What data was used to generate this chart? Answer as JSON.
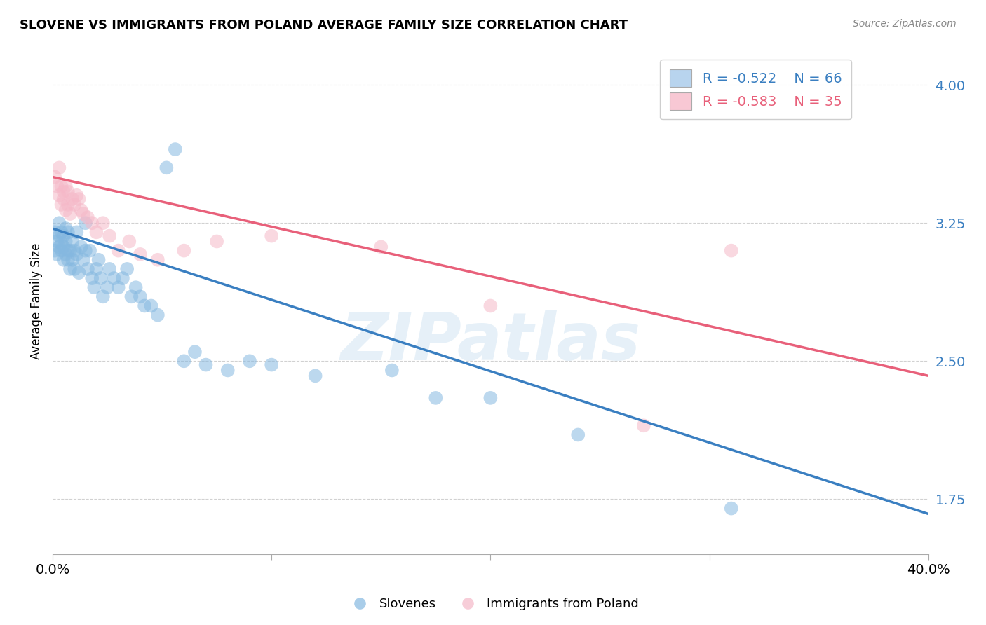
{
  "title": "SLOVENE VS IMMIGRANTS FROM POLAND AVERAGE FAMILY SIZE CORRELATION CHART",
  "source": "Source: ZipAtlas.com",
  "ylabel": "Average Family Size",
  "yticks": [
    1.75,
    2.5,
    3.25,
    4.0
  ],
  "xlim": [
    0.0,
    0.4
  ],
  "ylim": [
    1.45,
    4.2
  ],
  "blue_color": "#85b8e0",
  "pink_color": "#f5b8c8",
  "blue_line_color": "#3a7fc1",
  "pink_line_color": "#e8607a",
  "legend_blue_box": "#b8d4ee",
  "legend_pink_box": "#f8c8d4",
  "blue_R": -0.522,
  "blue_N": 66,
  "pink_R": -0.583,
  "pink_N": 35,
  "blue_scatter_x": [
    0.001,
    0.001,
    0.002,
    0.002,
    0.003,
    0.003,
    0.003,
    0.004,
    0.004,
    0.004,
    0.005,
    0.005,
    0.005,
    0.006,
    0.006,
    0.006,
    0.007,
    0.007,
    0.007,
    0.008,
    0.008,
    0.009,
    0.009,
    0.01,
    0.01,
    0.011,
    0.011,
    0.012,
    0.013,
    0.014,
    0.015,
    0.015,
    0.016,
    0.017,
    0.018,
    0.019,
    0.02,
    0.021,
    0.022,
    0.023,
    0.025,
    0.026,
    0.028,
    0.03,
    0.032,
    0.034,
    0.036,
    0.038,
    0.04,
    0.042,
    0.045,
    0.048,
    0.052,
    0.056,
    0.06,
    0.065,
    0.07,
    0.08,
    0.09,
    0.1,
    0.12,
    0.155,
    0.175,
    0.2,
    0.24,
    0.31
  ],
  "blue_scatter_y": [
    3.2,
    3.1,
    3.15,
    3.08,
    3.12,
    3.18,
    3.25,
    3.14,
    3.2,
    3.1,
    3.05,
    3.12,
    3.18,
    3.08,
    3.22,
    3.15,
    3.1,
    3.05,
    3.2,
    3.0,
    3.1,
    3.05,
    3.15,
    3.1,
    3.0,
    3.08,
    3.2,
    2.98,
    3.12,
    3.05,
    3.1,
    3.25,
    3.0,
    3.1,
    2.95,
    2.9,
    3.0,
    3.05,
    2.95,
    2.85,
    2.9,
    3.0,
    2.95,
    2.9,
    2.95,
    3.0,
    2.85,
    2.9,
    2.85,
    2.8,
    2.8,
    2.75,
    3.55,
    3.65,
    2.5,
    2.55,
    2.48,
    2.45,
    2.5,
    2.48,
    2.42,
    2.45,
    2.3,
    2.3,
    2.1,
    1.7
  ],
  "pink_scatter_x": [
    0.001,
    0.002,
    0.003,
    0.003,
    0.004,
    0.004,
    0.005,
    0.005,
    0.006,
    0.006,
    0.007,
    0.007,
    0.008,
    0.009,
    0.01,
    0.011,
    0.012,
    0.013,
    0.014,
    0.016,
    0.018,
    0.02,
    0.023,
    0.026,
    0.03,
    0.035,
    0.04,
    0.048,
    0.06,
    0.075,
    0.1,
    0.15,
    0.2,
    0.27,
    0.31
  ],
  "pink_scatter_y": [
    3.5,
    3.45,
    3.55,
    3.4,
    3.35,
    3.45,
    3.42,
    3.38,
    3.32,
    3.45,
    3.35,
    3.42,
    3.3,
    3.38,
    3.35,
    3.4,
    3.38,
    3.32,
    3.3,
    3.28,
    3.25,
    3.2,
    3.25,
    3.18,
    3.1,
    3.15,
    3.08,
    3.05,
    3.1,
    3.15,
    3.18,
    3.12,
    2.8,
    2.15,
    3.1
  ],
  "watermark_text": "ZIPatlas",
  "blue_trend_x": [
    0.0,
    0.4
  ],
  "blue_trend_y": [
    3.22,
    1.67
  ],
  "pink_trend_x": [
    0.0,
    0.4
  ],
  "pink_trend_y": [
    3.5,
    2.42
  ]
}
